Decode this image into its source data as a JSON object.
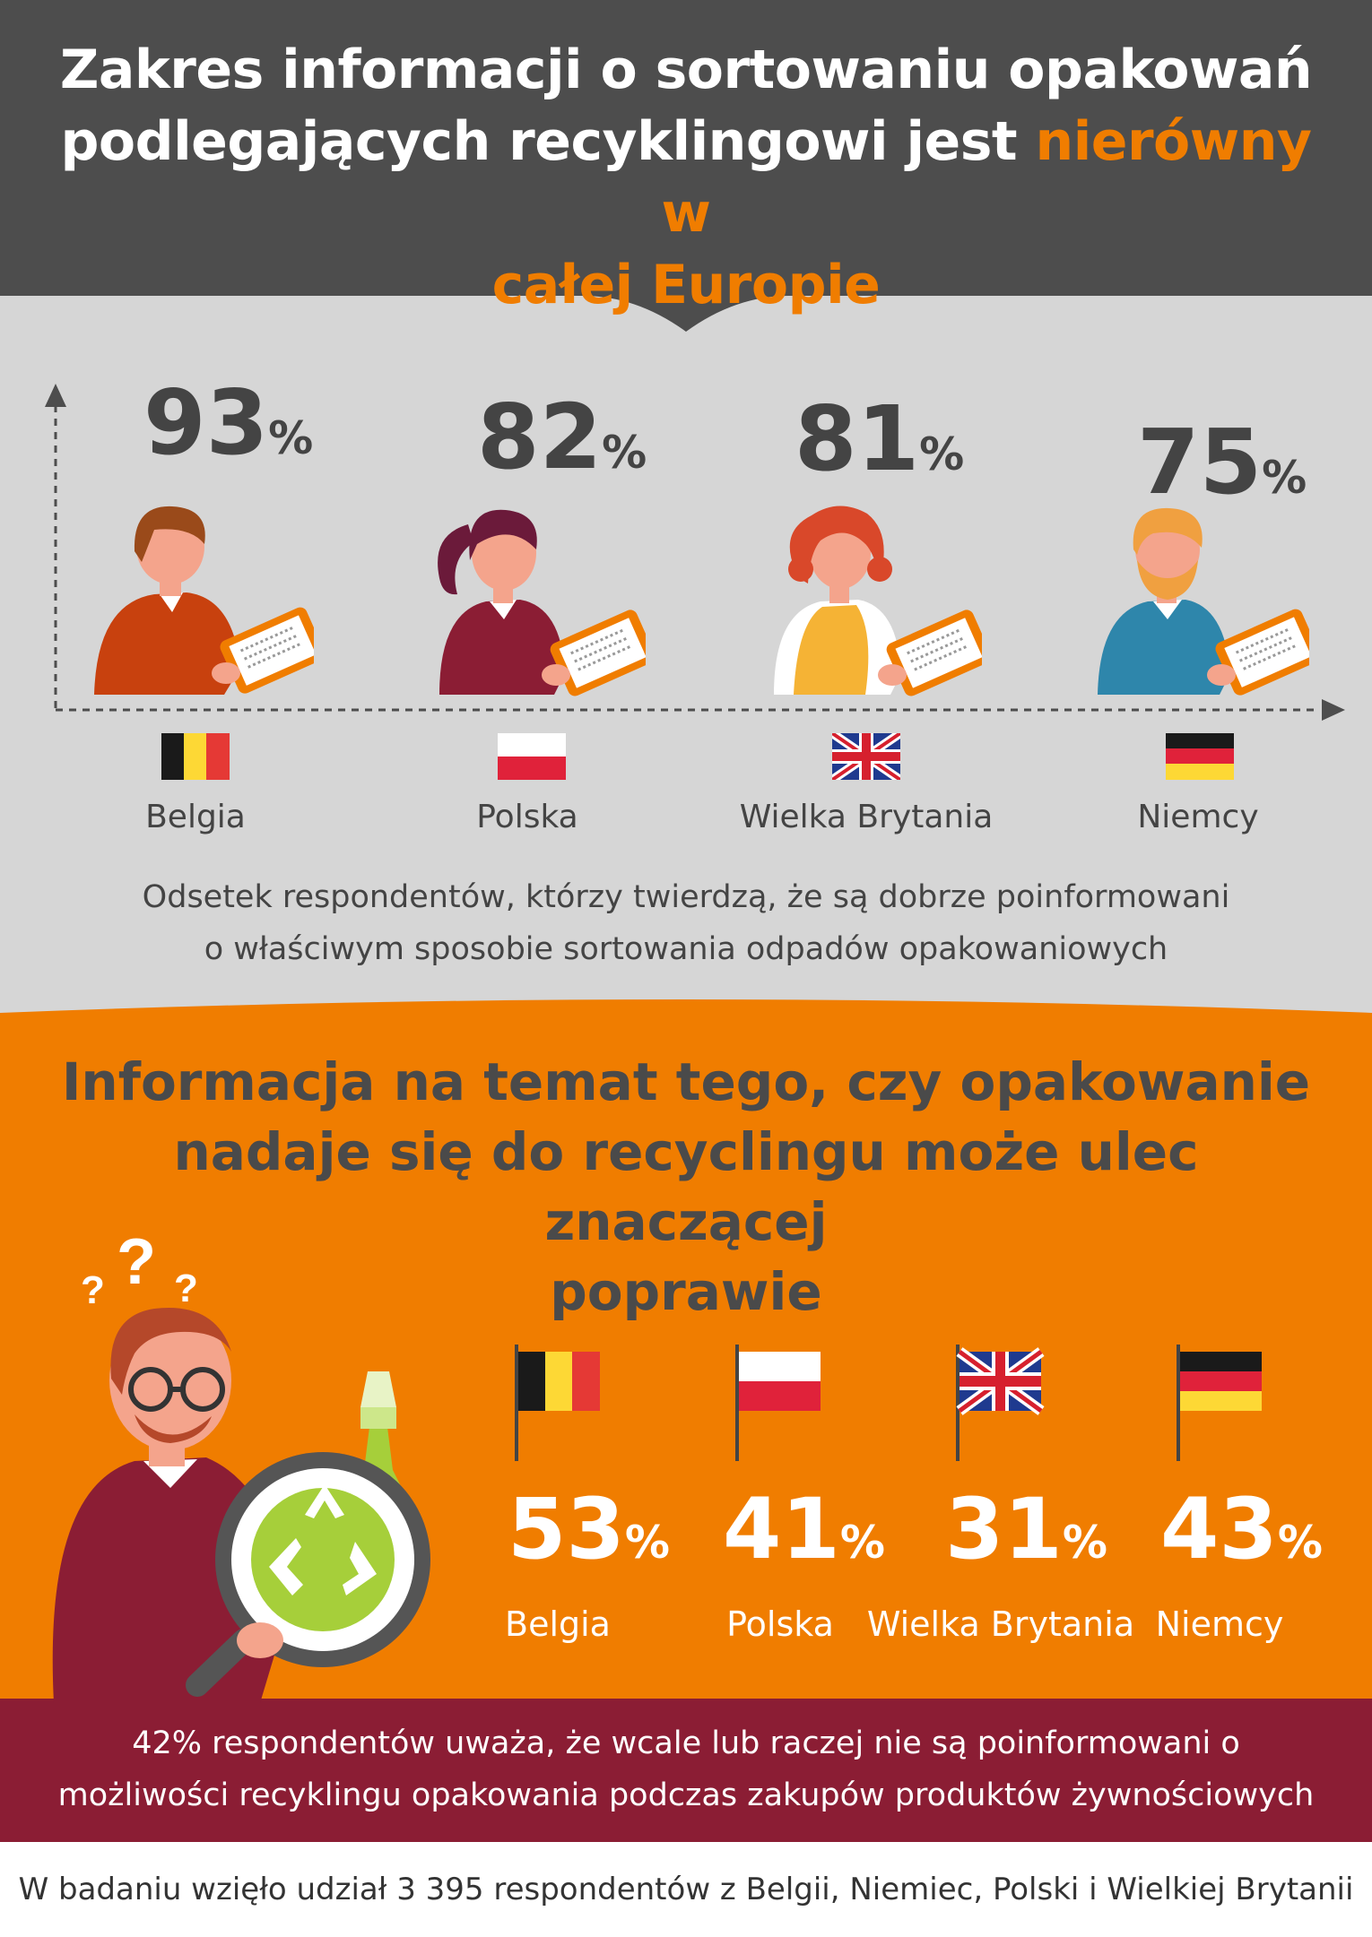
{
  "header": {
    "title_part1": "Zakres informacji o sortowaniu opakowań",
    "title_part2": "podlegających recyklingowi jest",
    "title_highlight_a": "nierówny w",
    "title_highlight_b": "całej Europie"
  },
  "chart_data": [
    {
      "type": "bar",
      "categories": [
        "Belgia",
        "Polska",
        "Wielka Brytania",
        "Niemcy"
      ],
      "values": [
        93,
        82,
        81,
        75
      ],
      "value_suffix": "%",
      "caption_line1": "Odsetek respondentów, którzy twierdzą, że są dobrze poinformowani",
      "caption_line2": "o właściwym sposobie sortowania odpadów opakowaniowych"
    },
    {
      "type": "bar",
      "categories": [
        "Belgia",
        "Polska",
        "Wielka Brytania",
        "Niemcy"
      ],
      "values": [
        53,
        41,
        31,
        43
      ],
      "value_suffix": "%",
      "heading_line1": "Informacja na temat tego, czy opakowanie",
      "heading_line2": "nadaje się do recyclingu może ulec znaczącej",
      "heading_line3": "poprawie"
    }
  ],
  "question_marks": "?",
  "footnote": {
    "line1": "42% respondentów uważa, że wcale lub raczej nie są poinformowani o",
    "line2": "możliwości recyklingu opakowania podczas zakupów produktów żywnościowych"
  },
  "source": "W badaniu wzięło udział 3 395 respondentów z Belgii, Niemiec, Polski i Wielkiej Brytanii",
  "colors": {
    "dark_header": "#4d4d4d",
    "light_band": "#d6d6d6",
    "orange": "#f07d00",
    "maroon": "#8b1d34",
    "text_dark": "#444444"
  },
  "icons": [
    "person-with-tablet-icon",
    "belgium-flag-icon",
    "poland-flag-icon",
    "uk-flag-icon",
    "germany-flag-icon",
    "recycle-icon",
    "magnifier-icon",
    "thinking-man-icon"
  ]
}
